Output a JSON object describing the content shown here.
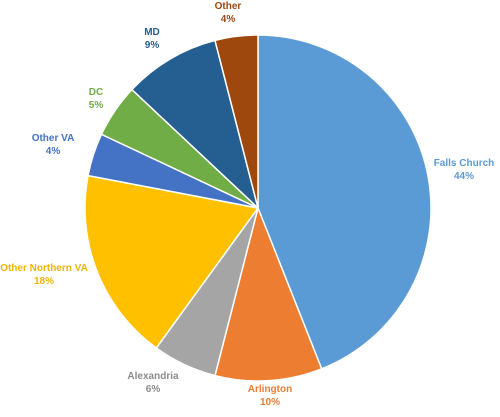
{
  "chart_data": {
    "type": "pie",
    "title": "",
    "start_angle_deg": 0,
    "direction": "clockwise",
    "legend": "none",
    "slices": [
      {
        "name": "Falls Church",
        "value": 44,
        "label": "44%",
        "color": "#5b9bd5"
      },
      {
        "name": "Arlington",
        "value": 10,
        "label": "10%",
        "color": "#ed7d31"
      },
      {
        "name": "Alexandria",
        "value": 6,
        "label": "6%",
        "color": "#a5a5a5"
      },
      {
        "name": "Other Northern VA",
        "value": 18,
        "label": "18%",
        "color": "#ffc000"
      },
      {
        "name": "Other VA",
        "value": 4,
        "label": "4%",
        "color": "#4472c4"
      },
      {
        "name": "DC",
        "value": 5,
        "label": "5%",
        "color": "#70ad47"
      },
      {
        "name": "MD",
        "value": 9,
        "label": "9%",
        "color": "#255e91"
      },
      {
        "name": "Other",
        "value": 4,
        "label": "4%",
        "color": "#9e480e"
      }
    ]
  }
}
